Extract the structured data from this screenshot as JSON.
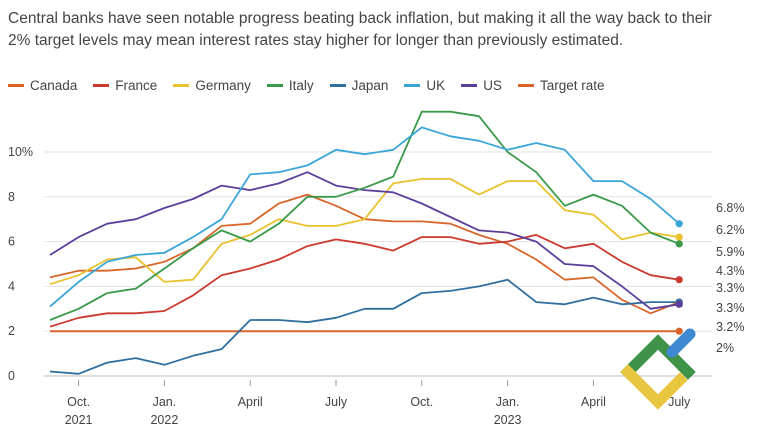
{
  "subtitle": "Central banks have seen notable progress beating back inflation, but making it all the way back to their 2% target levels may mean interest rates stay higher for longer than previously estimated.",
  "chart_data": {
    "type": "line",
    "title": "",
    "xlabel": "",
    "ylabel": "",
    "ylim": [
      -0.5,
      12
    ],
    "yticks": [
      0,
      2,
      4,
      6,
      8,
      10
    ],
    "ytick_labels": [
      "0",
      "2",
      "4",
      "6",
      "8",
      "10%"
    ],
    "x_index_range": [
      0,
      21
    ],
    "xticks": [
      {
        "index": 1,
        "line1": "Oct.",
        "line2": "2021"
      },
      {
        "index": 4,
        "line1": "Jan.",
        "line2": "2022"
      },
      {
        "index": 7,
        "line1": "April",
        "line2": ""
      },
      {
        "index": 10,
        "line1": "July",
        "line2": ""
      },
      {
        "index": 13,
        "line1": "Oct.",
        "line2": ""
      },
      {
        "index": 16,
        "line1": "Jan.",
        "line2": "2023"
      },
      {
        "index": 19,
        "line1": "April",
        "line2": ""
      },
      {
        "index": 22,
        "line1": "July",
        "line2": ""
      }
    ],
    "x_months": [
      "Sep. 2021",
      "Oct. 2021",
      "Nov. 2021",
      "Dec. 2021",
      "Jan. 2022",
      "Feb. 2022",
      "Mar. 2022",
      "Apr. 2022",
      "May 2022",
      "Jun. 2022",
      "Jul. 2022",
      "Aug. 2022",
      "Sep. 2022",
      "Oct. 2022",
      "Nov. 2022",
      "Dec. 2022",
      "Jan. 2023",
      "Feb. 2023",
      "Mar. 2023",
      "Apr. 2023",
      "May 2023",
      "Jun. 2023",
      "Jul. 2023"
    ],
    "series": [
      {
        "name": "Canada",
        "color": "#d9652b",
        "values": [
          4.4,
          4.7,
          4.7,
          4.8,
          5.1,
          5.7,
          6.7,
          6.8,
          7.7,
          8.1,
          7.6,
          7.0,
          6.9,
          6.9,
          6.8,
          6.3,
          5.9,
          5.2,
          4.3,
          4.4,
          3.4,
          2.8,
          3.3
        ]
      },
      {
        "name": "France",
        "color": "#cc3a2f",
        "values": [
          2.2,
          2.6,
          2.8,
          2.8,
          2.9,
          3.6,
          4.5,
          4.8,
          5.2,
          5.8,
          6.1,
          5.9,
          5.6,
          6.2,
          6.2,
          5.9,
          6.0,
          6.3,
          5.7,
          5.9,
          5.1,
          4.5,
          4.3
        ]
      },
      {
        "name": "Germany",
        "color": "#e8c22f",
        "values": [
          4.1,
          4.5,
          5.2,
          5.3,
          4.2,
          4.3,
          5.9,
          6.3,
          7.0,
          6.7,
          6.7,
          7.0,
          8.6,
          8.8,
          8.8,
          8.1,
          8.7,
          8.7,
          7.4,
          7.2,
          6.1,
          6.4,
          6.2
        ]
      },
      {
        "name": "Italy",
        "color": "#3a9a4a",
        "values": [
          2.5,
          3.0,
          3.7,
          3.9,
          4.8,
          5.7,
          6.5,
          6.0,
          6.8,
          8.0,
          8.0,
          8.4,
          8.9,
          11.8,
          11.8,
          11.6,
          10.0,
          9.1,
          7.6,
          8.1,
          7.6,
          6.4,
          5.9
        ]
      },
      {
        "name": "Japan",
        "color": "#2f6f9f",
        "values": [
          0.2,
          0.1,
          0.6,
          0.8,
          0.5,
          0.9,
          1.2,
          2.5,
          2.5,
          2.4,
          2.6,
          3.0,
          3.0,
          3.7,
          3.8,
          4.0,
          4.3,
          3.3,
          3.2,
          3.5,
          3.2,
          3.3,
          3.3
        ]
      },
      {
        "name": "UK",
        "color": "#3aa6d8",
        "values": [
          3.1,
          4.2,
          5.1,
          5.4,
          5.5,
          6.2,
          7.0,
          9.0,
          9.1,
          9.4,
          10.1,
          9.9,
          10.1,
          11.1,
          10.7,
          10.5,
          10.1,
          10.4,
          10.1,
          8.7,
          8.7,
          7.9,
          6.8
        ]
      },
      {
        "name": "US",
        "color": "#5b3f9a",
        "values": [
          5.4,
          6.2,
          6.8,
          7.0,
          7.5,
          7.9,
          8.5,
          8.3,
          8.6,
          9.1,
          8.5,
          8.3,
          8.2,
          7.7,
          7.1,
          6.5,
          6.4,
          6.0,
          5.0,
          4.9,
          4.0,
          3.0,
          3.2
        ]
      },
      {
        "name": "Target rate",
        "color": "#d9652b",
        "values": [
          2,
          2,
          2,
          2,
          2,
          2,
          2,
          2,
          2,
          2,
          2,
          2,
          2,
          2,
          2,
          2,
          2,
          2,
          2,
          2,
          2,
          2,
          2
        ]
      }
    ],
    "end_labels": [
      "6.8%",
      "6.2%",
      "5.9%",
      "4.3%",
      "3.3%",
      "3.3%",
      "3.2%",
      "2%"
    ],
    "legend_position": "top-left"
  }
}
